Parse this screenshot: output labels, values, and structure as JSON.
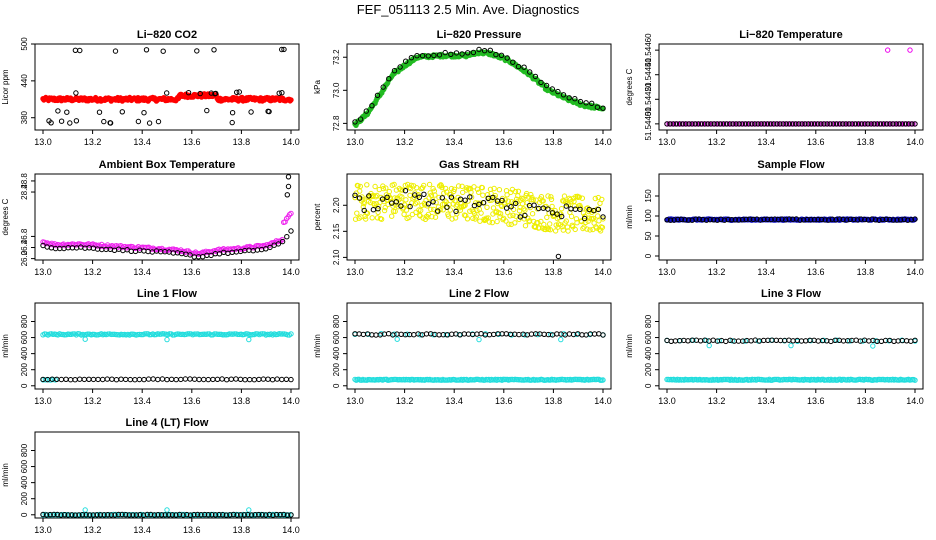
{
  "figure_title": "FEF_051113  2.5 Min. Ave. Diagnostics",
  "chart_data": [
    {
      "type": "scatter",
      "title": "Li−820 CO2",
      "ylabel": "Licor ppm",
      "xlim": [
        13.0,
        14.0
      ],
      "ylim": [
        360,
        500
      ],
      "x_ticks": [
        "13.0",
        "13.2",
        "13.4",
        "13.6",
        "13.8",
        "14.0"
      ],
      "y_ticks": [
        {
          "v": 380,
          "label": "380"
        },
        {
          "v": 440,
          "label": "440"
        },
        {
          "v": 500,
          "label": "500"
        }
      ],
      "series": [
        {
          "name": "primary",
          "color": "#ff0000",
          "filled": true,
          "gen": "co2red"
        },
        {
          "name": "secondary",
          "color": "#000000",
          "filled": false,
          "gen": "co2black"
        }
      ]
    },
    {
      "type": "scatter",
      "title": "Li−820 Pressure",
      "ylabel": "kPa",
      "xlim": [
        13.0,
        14.0
      ],
      "ylim": [
        72.76,
        73.28
      ],
      "x_ticks": [
        "13.0",
        "13.2",
        "13.4",
        "13.6",
        "13.8",
        "14.0"
      ],
      "y_ticks": [
        {
          "v": 72.8,
          "label": "72.8"
        },
        {
          "v": 73.0,
          "label": "73.0"
        },
        {
          "v": 73.2,
          "label": "73.2"
        }
      ],
      "series": [
        {
          "name": "primary",
          "color": "#22bb22",
          "filled": true,
          "gen": "pressure_green"
        },
        {
          "name": "secondary",
          "color": "#000000",
          "filled": false,
          "gen": "pressure_black"
        }
      ]
    },
    {
      "type": "scatter",
      "title": "Li−820 Temperature",
      "ylabel": "degrees C",
      "xlim": [
        13.0,
        14.0
      ],
      "ylim": [
        51.54395,
        51.54465
      ],
      "x_ticks": [
        "13.0",
        "13.2",
        "13.4",
        "13.6",
        "13.8",
        "14.0"
      ],
      "y_ticks": [
        {
          "v": 51.544,
          "label": "51.54400"
        },
        {
          "v": 51.5442,
          "label": "51.54420"
        },
        {
          "v": 51.5444,
          "label": "51.54440"
        },
        {
          "v": 51.5446,
          "label": "51.54460"
        }
      ],
      "series": [
        {
          "name": "primary",
          "color": "#ee00ee",
          "filled": false,
          "gen": "temp_mag"
        },
        {
          "name": "secondary",
          "color": "#000000",
          "filled": false,
          "gen": "temp_black"
        }
      ]
    },
    {
      "type": "scatter",
      "title": "Ambient Box Temperature",
      "ylabel": "degrees C",
      "xlim": [
        13.0,
        14.0
      ],
      "ylim": [
        25.95,
        29.05
      ],
      "x_ticks": [
        "13.0",
        "13.2",
        "13.4",
        "13.6",
        "13.8",
        "14.0"
      ],
      "y_ticks": [
        {
          "v": 26.0,
          "label": "26.0"
        },
        {
          "v": 26.4,
          "label": "26.4"
        },
        {
          "v": 26.8,
          "label": "26.8"
        },
        {
          "v": 28.4,
          "label": "28.4"
        },
        {
          "v": 28.8,
          "label": "28.8"
        }
      ],
      "series": [
        {
          "name": "primary",
          "color": "#ee22ee",
          "filled": false,
          "gen": "amb_mag"
        },
        {
          "name": "secondary",
          "color": "#000000",
          "filled": false,
          "gen": "amb_black"
        }
      ]
    },
    {
      "type": "scatter",
      "title": "Gas Stream RH",
      "ylabel": "percent",
      "xlim": [
        13.0,
        14.0
      ],
      "ylim": [
        2.095,
        2.26
      ],
      "x_ticks": [
        "13.0",
        "13.2",
        "13.4",
        "13.6",
        "13.8",
        "14.0"
      ],
      "y_ticks": [
        {
          "v": 2.1,
          "label": "2.10"
        },
        {
          "v": 2.15,
          "label": "2.15"
        },
        {
          "v": 2.2,
          "label": "2.20"
        }
      ],
      "series": [
        {
          "name": "primary",
          "color": "#eeee00",
          "filled": false,
          "gen": "rh_yel"
        },
        {
          "name": "secondary",
          "color": "#000000",
          "filled": false,
          "gen": "rh_black"
        }
      ]
    },
    {
      "type": "scatter",
      "title": "Sample Flow",
      "ylabel": "ml/min",
      "xlim": [
        13.0,
        14.0
      ],
      "ylim": [
        -10,
        205
      ],
      "x_ticks": [
        "13.0",
        "13.2",
        "13.4",
        "13.6",
        "13.8",
        "14.0"
      ],
      "y_ticks": [
        {
          "v": 0,
          "label": "0"
        },
        {
          "v": 50,
          "label": "50"
        },
        {
          "v": 100,
          "label": "100"
        },
        {
          "v": 150,
          "label": "150"
        }
      ],
      "series": [
        {
          "name": "primary",
          "color": "#1111cc",
          "filled": true,
          "gen": "sf_blue"
        },
        {
          "name": "secondary",
          "color": "#000000",
          "filled": false,
          "gen": "sf_black"
        }
      ]
    },
    {
      "type": "scatter",
      "title": "Line 1 Flow",
      "ylabel": "ml/min",
      "xlim": [
        13.0,
        14.0
      ],
      "ylim": [
        -40,
        1030
      ],
      "x_ticks": [
        "13.0",
        "13.2",
        "13.4",
        "13.6",
        "13.8",
        "14.0"
      ],
      "y_ticks": [
        {
          "v": 0,
          "label": "0"
        },
        {
          "v": 200,
          "label": "200"
        },
        {
          "v": 400,
          "label": "400"
        },
        {
          "v": 600,
          "label": "600"
        },
        {
          "v": 800,
          "label": "800"
        }
      ],
      "series": [
        {
          "name": "primary",
          "color": "#22dddd",
          "filled": false,
          "gen": "l1_cyan"
        },
        {
          "name": "secondary",
          "color": "#000000",
          "filled": false,
          "gen": "l1_black"
        }
      ]
    },
    {
      "type": "scatter",
      "title": "Line 2 Flow",
      "ylabel": "ml/min",
      "xlim": [
        13.0,
        14.0
      ],
      "ylim": [
        -40,
        1030
      ],
      "x_ticks": [
        "13.0",
        "13.2",
        "13.4",
        "13.6",
        "13.8",
        "14.0"
      ],
      "y_ticks": [
        {
          "v": 0,
          "label": "0"
        },
        {
          "v": 200,
          "label": "200"
        },
        {
          "v": 400,
          "label": "400"
        },
        {
          "v": 600,
          "label": "600"
        },
        {
          "v": 800,
          "label": "800"
        }
      ],
      "series": [
        {
          "name": "primary",
          "color": "#22dddd",
          "filled": false,
          "gen": "l2_cyan"
        },
        {
          "name": "secondary",
          "color": "#000000",
          "filled": false,
          "gen": "l2_black"
        }
      ]
    },
    {
      "type": "scatter",
      "title": "Line 3 Flow",
      "ylabel": "ml/min",
      "xlim": [
        13.0,
        14.0
      ],
      "ylim": [
        -40,
        1030
      ],
      "x_ticks": [
        "13.0",
        "13.2",
        "13.4",
        "13.6",
        "13.8",
        "14.0"
      ],
      "y_ticks": [
        {
          "v": 0,
          "label": "0"
        },
        {
          "v": 200,
          "label": "200"
        },
        {
          "v": 400,
          "label": "400"
        },
        {
          "v": 600,
          "label": "600"
        },
        {
          "v": 800,
          "label": "800"
        }
      ],
      "series": [
        {
          "name": "primary",
          "color": "#22dddd",
          "filled": false,
          "gen": "l3_cyan"
        },
        {
          "name": "secondary",
          "color": "#000000",
          "filled": false,
          "gen": "l3_black"
        }
      ]
    },
    {
      "type": "scatter",
      "title": "Line 4 (LT) Flow",
      "ylabel": "ml/min",
      "xlim": [
        13.0,
        14.0
      ],
      "ylim": [
        -40,
        1030
      ],
      "x_ticks": [
        "13.0",
        "13.2",
        "13.4",
        "13.6",
        "13.8",
        "14.0"
      ],
      "y_ticks": [
        {
          "v": 0,
          "label": "0"
        },
        {
          "v": 200,
          "label": "200"
        },
        {
          "v": 400,
          "label": "400"
        },
        {
          "v": 600,
          "label": "600"
        },
        {
          "v": 800,
          "label": "800"
        }
      ],
      "series": [
        {
          "name": "primary",
          "color": "#22dddd",
          "filled": false,
          "gen": "l4_cyan"
        },
        {
          "name": "secondary",
          "color": "#000000",
          "filled": false,
          "gen": "l4_black"
        }
      ]
    }
  ]
}
